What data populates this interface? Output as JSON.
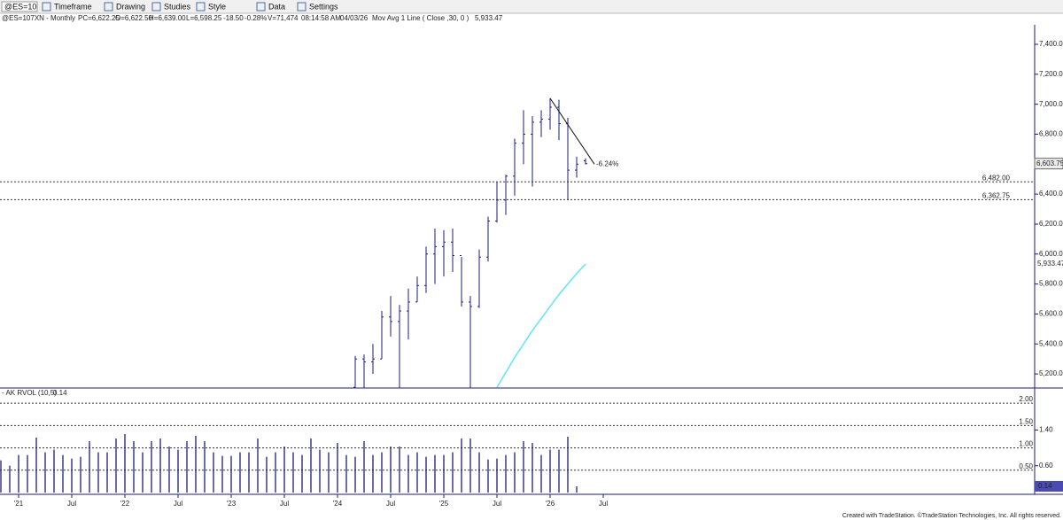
{
  "toolbar": {
    "symbol": "@ES=10",
    "menus": [
      "Timeframe",
      "Drawing",
      "Studies",
      "Style",
      "Data",
      "Settings"
    ]
  },
  "header": {
    "symbol": "@ES=107XN - Monthly",
    "fields": [
      "PC=6,622.25",
      "O=6,622.50",
      "H=6,639.00",
      "L=6,598.25",
      "-18.50",
      "-0.28%",
      "V=71,474",
      "08:14:58 AM",
      "04/03/26",
      "Mov Avg 1 Line ( Close ,30, 0 )"
    ]
  },
  "chart_data": [
    {
      "type": "ohlc",
      "color": "#1c1c78",
      "x": [
        40,
        41,
        42,
        43,
        44,
        45,
        46,
        47,
        48,
        49,
        50,
        51,
        52,
        53,
        54,
        55,
        56,
        57,
        58,
        59,
        60,
        61,
        62,
        63,
        64,
        65,
        66
      ],
      "open": [
        5110,
        5300,
        5280,
        5300,
        5580,
        5550,
        5620,
        5680,
        5790,
        6000,
        6050,
        6080,
        5990,
        5680,
        5650,
        5980,
        6220,
        6360,
        6520,
        6740,
        6800,
        6880,
        6900,
        6980,
        6870,
        6560,
        6622.5
      ],
      "high": [
        5320,
        5330,
        5400,
        5620,
        5720,
        5660,
        5770,
        5850,
        6050,
        6170,
        6160,
        6170,
        5980,
        5720,
        6030,
        6250,
        6480,
        6530,
        6770,
        6960,
        6920,
        6960,
        7040,
        7030,
        6910,
        6650,
        6639
      ],
      "low": [
        5100,
        5080,
        5200,
        5300,
        5450,
        5100,
        5430,
        5680,
        5740,
        5800,
        5850,
        5880,
        5650,
        5100,
        5640,
        5950,
        6210,
        6260,
        6390,
        6600,
        6450,
        6780,
        6830,
        6760,
        6360,
        6510,
        6598.25
      ],
      "close": [
        5300,
        5280,
        5300,
        5580,
        5550,
        5620,
        5680,
        5790,
        6000,
        6050,
        6080,
        5990,
        5680,
        5650,
        5980,
        6220,
        6360,
        6520,
        6740,
        6800,
        6880,
        6900,
        6980,
        6870,
        6560,
        6600,
        6603.75
      ],
      "ylim": [
        5106,
        7530
      ],
      "yticks": [
        {
          "value": 5200,
          "label": "5,200.00"
        },
        {
          "value": 5400,
          "label": "5,400.00"
        },
        {
          "value": 5600,
          "label": "5,600.00"
        },
        {
          "value": 5800,
          "label": "5,800.00"
        },
        {
          "value": 6000,
          "label": "6,000.00"
        },
        {
          "value": 6200,
          "label": "6,200.00"
        },
        {
          "value": 6400,
          "label": "6,400.00"
        },
        {
          "value": 6600,
          "label": "6,600.00"
        },
        {
          "value": 6800,
          "label": "6,800.00"
        },
        {
          "value": 7000,
          "label": "7,000.00"
        },
        {
          "value": 7200,
          "label": "7,200.00"
        },
        {
          "value": 7400,
          "label": "7,400.00"
        }
      ],
      "hlines": [
        {
          "value": 6482,
          "label": "6,482.00"
        },
        {
          "value": 6362.75,
          "label": "6,362.75"
        }
      ],
      "last": {
        "value": 6603.75,
        "label": "6,603.75"
      },
      "overlay": {
        "color": "#5ee8f0",
        "x": [
          56,
          57,
          58,
          59,
          60,
          61,
          62,
          63,
          64,
          65,
          66
        ],
        "values": [
          5110,
          5210,
          5310,
          5400,
          5490,
          5570,
          5650,
          5730,
          5800,
          5870,
          5933.47
        ],
        "last": {
          "value": 5933.47,
          "label": "5,933.47"
        }
      },
      "trendline": {
        "x": [
          62,
          66
        ],
        "values": [
          7040,
          6600
        ],
        "label": "-6.24%"
      }
    },
    {
      "type": "bar",
      "name": "AK RVOL (10,5)",
      "color": "#1c1c78",
      "x": [
        0,
        1,
        2,
        3,
        4,
        5,
        6,
        7,
        8,
        9,
        10,
        11,
        12,
        13,
        14,
        15,
        16,
        17,
        18,
        19,
        20,
        21,
        22,
        23,
        24,
        25,
        26,
        27,
        28,
        29,
        30,
        31,
        32,
        33,
        34,
        35,
        36,
        37,
        38,
        39,
        40,
        41,
        42,
        43,
        44,
        45,
        46,
        47,
        48,
        49,
        50,
        51,
        52,
        53,
        54,
        55,
        56,
        57,
        58,
        59,
        60,
        61,
        62,
        63,
        64,
        65
      ],
      "values": [
        0.72,
        0.6,
        0.84,
        0.84,
        1.23,
        0.9,
        0.96,
        0.84,
        0.76,
        0.8,
        1.15,
        0.9,
        0.9,
        1.21,
        1.31,
        1.15,
        0.9,
        1.15,
        1.21,
        1.03,
        0.96,
        1.15,
        1.27,
        1.15,
        0.9,
        0.82,
        0.82,
        0.9,
        0.9,
        1.21,
        0.8,
        0.9,
        1.03,
        0.9,
        0.84,
        1.21,
        0.96,
        0.9,
        1.11,
        0.84,
        0.8,
        1.15,
        0.84,
        0.9,
        1.03,
        1.03,
        0.84,
        0.9,
        0.8,
        0.84,
        0.84,
        0.9,
        1.21,
        1.21,
        0.9,
        0.74,
        0.76,
        0.84,
        0.9,
        1.15,
        1.11,
        0.84,
        0.96,
        0.96,
        1.25,
        0.14
      ],
      "ylim": [
        0,
        2.3
      ],
      "yticks": [
        {
          "value": 1.4,
          "label": "1.40"
        },
        {
          "value": 0.6,
          "label": "0.60"
        }
      ],
      "hlines": [
        {
          "value": 2,
          "label": "2.00"
        },
        {
          "value": 1.5,
          "label": "1.50"
        },
        {
          "value": 1,
          "label": "1.00"
        },
        {
          "value": 0.5,
          "label": "0.50"
        }
      ],
      "last": {
        "value": 0.14,
        "label": "0.14"
      },
      "xticks": [
        {
          "value": 2,
          "label": "'21"
        },
        {
          "value": 8,
          "label": "Jul"
        },
        {
          "value": 14,
          "label": "'22"
        },
        {
          "value": 20,
          "label": "Jul"
        },
        {
          "value": 26,
          "label": "'23"
        },
        {
          "value": 32,
          "label": "Jul"
        },
        {
          "value": 38,
          "label": "'24"
        },
        {
          "value": 44,
          "label": "Jul"
        },
        {
          "value": 50,
          "label": "'25"
        },
        {
          "value": 56,
          "label": "Jul"
        },
        {
          "value": 62,
          "label": "'26"
        },
        {
          "value": 68,
          "label": "Jul"
        }
      ]
    }
  ],
  "footer": "Created with TradeStation. ©TradeStation Technologies, Inc. All rights reserved."
}
